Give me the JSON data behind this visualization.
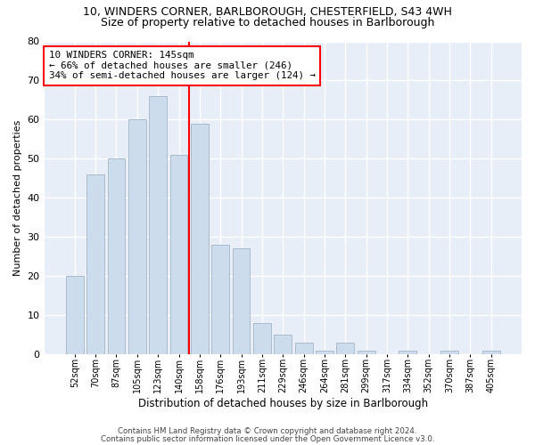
{
  "title_line1": "10, WINDERS CORNER, BARLBOROUGH, CHESTERFIELD, S43 4WH",
  "title_line2": "Size of property relative to detached houses in Barlborough",
  "xlabel": "Distribution of detached houses by size in Barlborough",
  "ylabel": "Number of detached properties",
  "bar_color": "#ccdcec",
  "bar_edgecolor": "#aabccc",
  "vline_color": "red",
  "annotation_text": "10 WINDERS CORNER: 145sqm\n← 66% of detached houses are smaller (246)\n34% of semi-detached houses are larger (124) →",
  "annotation_box_color": "white",
  "annotation_box_edgecolor": "red",
  "categories": [
    "52sqm",
    "70sqm",
    "87sqm",
    "105sqm",
    "123sqm",
    "140sqm",
    "158sqm",
    "176sqm",
    "193sqm",
    "211sqm",
    "229sqm",
    "246sqm",
    "264sqm",
    "281sqm",
    "299sqm",
    "317sqm",
    "334sqm",
    "352sqm",
    "370sqm",
    "387sqm",
    "405sqm"
  ],
  "values": [
    20,
    46,
    50,
    60,
    66,
    51,
    59,
    28,
    27,
    8,
    5,
    3,
    1,
    3,
    1,
    0,
    1,
    0,
    1,
    0,
    1
  ],
  "ylim": [
    0,
    80
  ],
  "yticks": [
    0,
    10,
    20,
    30,
    40,
    50,
    60,
    70,
    80
  ],
  "footer_line1": "Contains HM Land Registry data © Crown copyright and database right 2024.",
  "footer_line2": "Contains public sector information licensed under the Open Government Licence v3.0.",
  "title_fontsize": 9,
  "subtitle_fontsize": 9,
  "bar_width": 0.85,
  "vline_bar_index": 5,
  "background_color": "#e8eef8"
}
